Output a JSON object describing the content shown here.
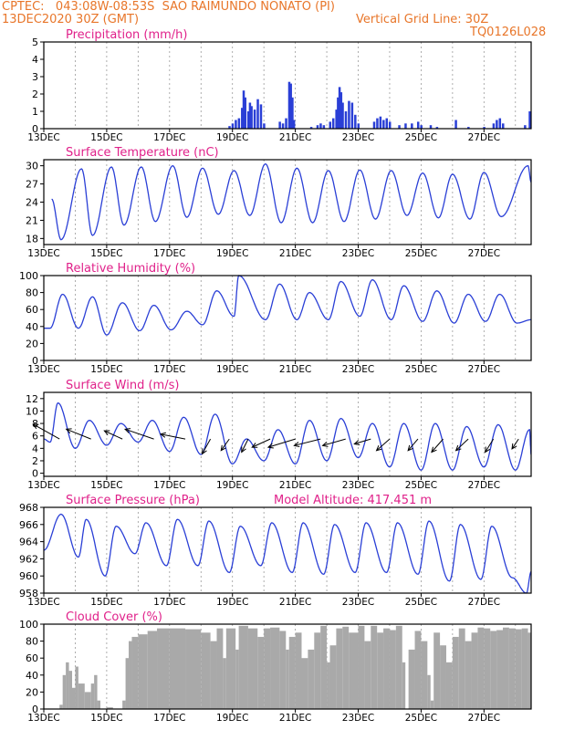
{
  "header": {
    "line1": "CPTEC:   043:08W-08:53S  SAO RAIMUNDO NONATO (PI)",
    "line2_left": "13DEC2020 30Z (GMT)",
    "line2_right": "Vertical Grid Line: 30Z",
    "line3_right": "TQ0126L028"
  },
  "colors": {
    "header": "#e8762a",
    "title": "#e0218a",
    "series": "#2a3fd6",
    "cloud": "#a9a9a9",
    "grid": "#9a9a9a"
  },
  "chart_data": [
    {
      "type": "bar",
      "title": "Precipitation (mm/h)",
      "ylim": [
        0,
        5
      ],
      "yticks": [
        "0",
        "1",
        "2",
        "3",
        "4",
        "5"
      ],
      "xticks": [
        "13DEC",
        "15DEC",
        "17DEC",
        "19DEC",
        "21DEC",
        "23DEC",
        "25DEC",
        "27DEC"
      ],
      "x_day_range": [
        0,
        15.5
      ],
      "points": [
        [
          5.9,
          0.15
        ],
        [
          6.0,
          0.3
        ],
        [
          6.1,
          0.5
        ],
        [
          6.2,
          0.6
        ],
        [
          6.3,
          1.2
        ],
        [
          6.35,
          2.2
        ],
        [
          6.4,
          1.8
        ],
        [
          6.5,
          1.0
        ],
        [
          6.55,
          1.5
        ],
        [
          6.6,
          1.3
        ],
        [
          6.7,
          1.1
        ],
        [
          6.8,
          1.7
        ],
        [
          6.9,
          1.4
        ],
        [
          7.0,
          0.3
        ],
        [
          7.5,
          0.4
        ],
        [
          7.6,
          0.3
        ],
        [
          7.7,
          0.6
        ],
        [
          7.8,
          2.7
        ],
        [
          7.85,
          2.6
        ],
        [
          7.9,
          1.8
        ],
        [
          7.95,
          0.5
        ],
        [
          8.5,
          0.1
        ],
        [
          8.7,
          0.2
        ],
        [
          8.8,
          0.3
        ],
        [
          8.9,
          0.2
        ],
        [
          9.1,
          0.4
        ],
        [
          9.2,
          0.6
        ],
        [
          9.3,
          1.1
        ],
        [
          9.35,
          1.8
        ],
        [
          9.4,
          2.4
        ],
        [
          9.45,
          2.1
        ],
        [
          9.5,
          1.5
        ],
        [
          9.6,
          1.0
        ],
        [
          9.7,
          1.6
        ],
        [
          9.8,
          1.5
        ],
        [
          9.9,
          0.8
        ],
        [
          10.0,
          0.3
        ],
        [
          10.5,
          0.4
        ],
        [
          10.6,
          0.6
        ],
        [
          10.7,
          0.7
        ],
        [
          10.8,
          0.5
        ],
        [
          10.9,
          0.6
        ],
        [
          11.0,
          0.4
        ],
        [
          11.3,
          0.2
        ],
        [
          11.5,
          0.3
        ],
        [
          11.7,
          0.3
        ],
        [
          11.9,
          0.4
        ],
        [
          12.0,
          0.2
        ],
        [
          12.3,
          0.2
        ],
        [
          12.5,
          0.1
        ],
        [
          13.1,
          0.5
        ],
        [
          13.5,
          0.1
        ],
        [
          14.0,
          0.1
        ],
        [
          14.3,
          0.3
        ],
        [
          14.4,
          0.5
        ],
        [
          14.5,
          0.6
        ],
        [
          14.6,
          0.3
        ],
        [
          15.3,
          0.2
        ],
        [
          15.45,
          1.0
        ]
      ]
    },
    {
      "type": "line",
      "title": "Surface Temperature (nC)",
      "ylim": [
        17,
        31
      ],
      "yticks": [
        "18",
        "21",
        "24",
        "27",
        "30"
      ],
      "xticks": [
        "13DEC",
        "15DEC",
        "17DEC",
        "19DEC",
        "21DEC",
        "23DEC",
        "25DEC",
        "27DEC"
      ],
      "maxima": [
        [
          0.25,
          24.5
        ],
        [
          1.2,
          29.5
        ],
        [
          2.15,
          29.8
        ],
        [
          3.1,
          29.8
        ],
        [
          4.1,
          30.0
        ],
        [
          5.05,
          29.6
        ],
        [
          6.05,
          29.2
        ],
        [
          7.05,
          30.3
        ],
        [
          8.05,
          29.6
        ],
        [
          9.05,
          29.2
        ],
        [
          10.05,
          29.3
        ],
        [
          11.05,
          29.2
        ],
        [
          12.05,
          28.8
        ],
        [
          13.0,
          28.6
        ],
        [
          14.0,
          28.9
        ],
        [
          15.4,
          30.0
        ],
        [
          15.5,
          27.3
        ]
      ],
      "minima": [
        [
          0.55,
          17.8
        ],
        [
          1.55,
          18.5
        ],
        [
          2.55,
          20.2
        ],
        [
          3.55,
          20.8
        ],
        [
          4.55,
          21.5
        ],
        [
          5.55,
          22.0
        ],
        [
          6.55,
          21.8
        ],
        [
          7.55,
          20.6
        ],
        [
          8.55,
          20.6
        ],
        [
          9.55,
          20.8
        ],
        [
          10.55,
          21.2
        ],
        [
          11.55,
          21.8
        ],
        [
          12.55,
          21.4
        ],
        [
          13.55,
          21.2
        ],
        [
          14.55,
          21.6
        ]
      ]
    },
    {
      "type": "line",
      "title": "Relative Humidity (%)",
      "ylim": [
        0,
        100
      ],
      "yticks": [
        "0",
        "20",
        "40",
        "60",
        "80",
        "100"
      ],
      "xticks": [
        "13DEC",
        "15DEC",
        "17DEC",
        "19DEC",
        "21DEC",
        "23DEC",
        "25DEC",
        "27DEC"
      ],
      "maxima": [
        [
          0.0,
          38
        ],
        [
          0.6,
          78
        ],
        [
          1.55,
          75
        ],
        [
          2.5,
          68
        ],
        [
          3.5,
          65
        ],
        [
          4.55,
          58
        ],
        [
          5.5,
          82
        ],
        [
          6.2,
          100
        ],
        [
          7.5,
          90
        ],
        [
          8.45,
          80
        ],
        [
          9.45,
          93
        ],
        [
          10.45,
          95
        ],
        [
          11.45,
          88
        ],
        [
          12.5,
          82
        ],
        [
          13.5,
          78
        ],
        [
          14.5,
          78
        ],
        [
          15.5,
          48
        ]
      ],
      "minima": [
        [
          0.2,
          38
        ],
        [
          1.1,
          38
        ],
        [
          2.0,
          30
        ],
        [
          3.05,
          35
        ],
        [
          4.05,
          36
        ],
        [
          5.05,
          42
        ],
        [
          6.05,
          52
        ],
        [
          7.05,
          48
        ],
        [
          8.05,
          48
        ],
        [
          9.05,
          48
        ],
        [
          10.05,
          52
        ],
        [
          11.05,
          48
        ],
        [
          12.05,
          46
        ],
        [
          13.05,
          44
        ],
        [
          14.05,
          46
        ],
        [
          15.05,
          44
        ]
      ]
    },
    {
      "type": "line",
      "title": "Surface Wind (m/s)",
      "ylim": [
        -0.5,
        13
      ],
      "yticks": [
        "0",
        "2",
        "4",
        "6",
        "8",
        "10",
        "12"
      ],
      "xticks": [
        "13DEC",
        "15DEC",
        "17DEC",
        "19DEC",
        "21DEC",
        "23DEC",
        "25DEC",
        "27DEC"
      ],
      "maxima": [
        [
          0.0,
          5.5
        ],
        [
          0.45,
          11.3
        ],
        [
          1.45,
          8.5
        ],
        [
          2.45,
          8.0
        ],
        [
          3.45,
          8.5
        ],
        [
          4.45,
          9.0
        ],
        [
          5.45,
          9.5
        ],
        [
          6.45,
          5.5
        ],
        [
          7.45,
          7.0
        ],
        [
          8.45,
          8.5
        ],
        [
          9.45,
          8.8
        ],
        [
          10.45,
          8.0
        ],
        [
          11.45,
          8.0
        ],
        [
          12.45,
          8.0
        ],
        [
          13.45,
          7.5
        ],
        [
          14.45,
          7.8
        ],
        [
          15.45,
          7.0
        ]
      ],
      "minima": [
        [
          0.2,
          5.0
        ],
        [
          1.0,
          4.0
        ],
        [
          2.0,
          4.5
        ],
        [
          3.0,
          5.0
        ],
        [
          4.0,
          3.5
        ],
        [
          5.0,
          3.0
        ],
        [
          6.0,
          1.5
        ],
        [
          7.0,
          2.0
        ],
        [
          8.0,
          1.5
        ],
        [
          9.0,
          2.0
        ],
        [
          10.0,
          2.5
        ],
        [
          11.0,
          1.0
        ],
        [
          12.0,
          0.5
        ],
        [
          13.0,
          0.5
        ],
        [
          14.0,
          1.0
        ],
        [
          15.0,
          0.5
        ],
        [
          15.5,
          3.0
        ]
      ],
      "wind_vectors": [
        [
          0.5,
          -3.2,
          1.8
        ],
        [
          1.5,
          -3.0,
          1.2
        ],
        [
          2.5,
          -2.2,
          1.0
        ],
        [
          3.5,
          -3.5,
          1.2
        ],
        [
          4.5,
          -3.0,
          0.6
        ],
        [
          5.3,
          -1.0,
          -1.8
        ],
        [
          5.9,
          -1.0,
          -1.4
        ],
        [
          6.5,
          -0.8,
          -1.6
        ],
        [
          7.2,
          -2.2,
          -1.0
        ],
        [
          8.0,
          -3.3,
          -1.0
        ],
        [
          8.8,
          -3.2,
          -0.8
        ],
        [
          9.6,
          -2.8,
          -0.8
        ],
        [
          10.4,
          -2.0,
          -0.6
        ],
        [
          11.0,
          -1.6,
          -1.4
        ],
        [
          11.9,
          -1.2,
          -1.4
        ],
        [
          12.7,
          -1.4,
          -1.6
        ],
        [
          13.5,
          -1.5,
          -1.4
        ],
        [
          14.3,
          -1.0,
          -1.6
        ],
        [
          15.1,
          -0.8,
          -1.2
        ]
      ]
    },
    {
      "type": "line",
      "title": "Surface Pressure (hPa)",
      "subtitle": "Model Altitude: 417.451 m",
      "ylim": [
        958,
        968
      ],
      "yticks": [
        "958",
        "960",
        "962",
        "964",
        "966",
        "968"
      ],
      "xticks": [
        "13DEC",
        "15DEC",
        "17DEC",
        "19DEC",
        "21DEC",
        "23DEC",
        "25DEC",
        "27DEC"
      ],
      "maxima": [
        [
          0.0,
          963.0
        ],
        [
          0.55,
          967.2
        ],
        [
          1.35,
          966.6
        ],
        [
          2.3,
          965.8
        ],
        [
          3.25,
          966.2
        ],
        [
          4.25,
          966.6
        ],
        [
          5.25,
          966.4
        ],
        [
          6.25,
          965.8
        ],
        [
          7.25,
          966.2
        ],
        [
          8.25,
          966.2
        ],
        [
          9.25,
          966.0
        ],
        [
          10.25,
          966.2
        ],
        [
          11.25,
          966.2
        ],
        [
          12.25,
          966.4
        ],
        [
          13.25,
          966.0
        ],
        [
          14.25,
          965.8
        ]
      ],
      "minima": [
        [
          1.1,
          962.2
        ],
        [
          1.95,
          960.0
        ],
        [
          2.9,
          962.6
        ],
        [
          3.9,
          961.2
        ],
        [
          4.9,
          961.2
        ],
        [
          5.9,
          960.4
        ],
        [
          6.9,
          961.2
        ],
        [
          7.9,
          960.4
        ],
        [
          8.9,
          960.2
        ],
        [
          9.9,
          960.4
        ],
        [
          10.9,
          960.4
        ],
        [
          11.9,
          960.2
        ],
        [
          12.9,
          959.4
        ],
        [
          13.9,
          959.6
        ],
        [
          14.9,
          959.8
        ],
        [
          15.35,
          958.0
        ],
        [
          15.5,
          960.5
        ]
      ]
    },
    {
      "type": "bar",
      "title": "Cloud Cover (%)",
      "ylim": [
        0,
        100
      ],
      "yticks": [
        "0",
        "20",
        "40",
        "60",
        "80",
        "100"
      ],
      "xticks": [
        "13DEC",
        "15DEC",
        "17DEC",
        "19DEC",
        "21DEC",
        "23DEC",
        "25DEC",
        "27DEC"
      ],
      "points": [
        [
          0.3,
          0
        ],
        [
          0.5,
          5
        ],
        [
          0.6,
          40
        ],
        [
          0.7,
          55
        ],
        [
          0.8,
          45
        ],
        [
          0.9,
          25
        ],
        [
          1.0,
          50
        ],
        [
          1.1,
          30
        ],
        [
          1.3,
          20
        ],
        [
          1.5,
          30
        ],
        [
          1.6,
          40
        ],
        [
          1.7,
          10
        ],
        [
          1.8,
          0
        ],
        [
          2.0,
          2
        ],
        [
          2.2,
          0
        ],
        [
          2.5,
          10
        ],
        [
          2.6,
          60
        ],
        [
          2.7,
          80
        ],
        [
          2.8,
          85
        ],
        [
          3.0,
          88
        ],
        [
          3.3,
          92
        ],
        [
          3.6,
          95
        ],
        [
          4.0,
          95
        ],
        [
          4.5,
          94
        ],
        [
          5.0,
          90
        ],
        [
          5.3,
          80
        ],
        [
          5.5,
          95
        ],
        [
          5.7,
          60
        ],
        [
          5.8,
          95
        ],
        [
          6.1,
          70
        ],
        [
          6.2,
          98
        ],
        [
          6.5,
          95
        ],
        [
          6.8,
          85
        ],
        [
          7.0,
          95
        ],
        [
          7.2,
          96
        ],
        [
          7.5,
          92
        ],
        [
          7.7,
          70
        ],
        [
          7.8,
          85
        ],
        [
          8.0,
          90
        ],
        [
          8.2,
          60
        ],
        [
          8.4,
          70
        ],
        [
          8.6,
          90
        ],
        [
          8.8,
          98
        ],
        [
          9.0,
          55
        ],
        [
          9.1,
          75
        ],
        [
          9.3,
          95
        ],
        [
          9.5,
          97
        ],
        [
          9.7,
          90
        ],
        [
          10.0,
          98
        ],
        [
          10.2,
          80
        ],
        [
          10.4,
          98
        ],
        [
          10.6,
          90
        ],
        [
          10.8,
          95
        ],
        [
          11.0,
          93
        ],
        [
          11.2,
          98
        ],
        [
          11.4,
          55
        ],
        [
          11.5,
          0
        ],
        [
          11.6,
          70
        ],
        [
          11.8,
          92
        ],
        [
          12.0,
          80
        ],
        [
          12.2,
          40
        ],
        [
          12.3,
          10
        ],
        [
          12.4,
          90
        ],
        [
          12.6,
          75
        ],
        [
          12.8,
          55
        ],
        [
          13.0,
          85
        ],
        [
          13.2,
          95
        ],
        [
          13.4,
          80
        ],
        [
          13.6,
          90
        ],
        [
          13.8,
          96
        ],
        [
          14.0,
          95
        ],
        [
          14.2,
          92
        ],
        [
          14.4,
          93
        ],
        [
          14.6,
          96
        ],
        [
          14.8,
          95
        ],
        [
          15.0,
          94
        ],
        [
          15.2,
          95
        ],
        [
          15.4,
          90
        ]
      ]
    }
  ]
}
